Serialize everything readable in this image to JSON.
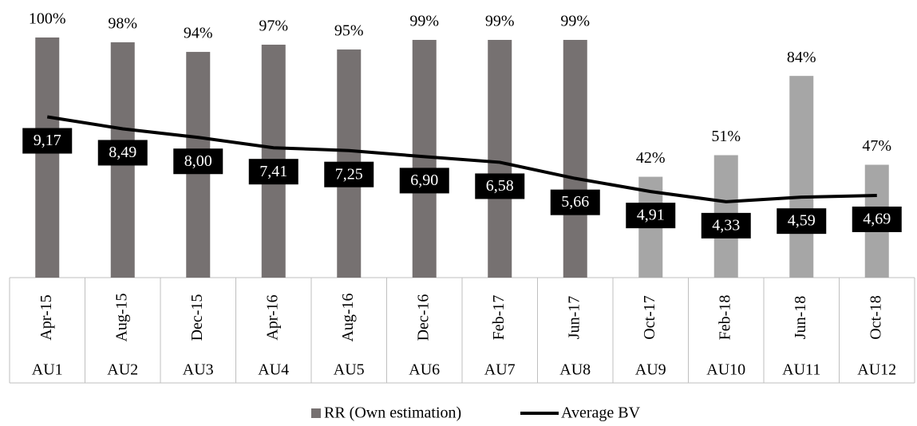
{
  "chart_data": {
    "type": "bar",
    "categories": [
      "Apr-15",
      "Aug-15",
      "Dec-15",
      "Apr-16",
      "Aug-16",
      "Dec-16",
      "Feb-17",
      "Jun-17",
      "Oct-17",
      "Feb-18",
      "Jun-18",
      "Oct-18"
    ],
    "category_groups": [
      "AU1",
      "AU2",
      "AU3",
      "AU4",
      "AU5",
      "AU6",
      "AU7",
      "AU8",
      "AU9",
      "AU10",
      "AU11",
      "AU12"
    ],
    "series": [
      {
        "name": "RR (Own estimation)",
        "color": "#767171",
        "colors": [
          "#767171",
          "#767171",
          "#767171",
          "#767171",
          "#767171",
          "#767171",
          "#767171",
          "#767171",
          "#a6a6a6",
          "#a6a6a6",
          "#a6a6a6",
          "#a6a6a6"
        ],
        "values": [
          100,
          98,
          94,
          97,
          95,
          99,
          99,
          99,
          42,
          51,
          84,
          47
        ],
        "value_labels": [
          "100%",
          "98%",
          "94%",
          "97%",
          "95%",
          "99%",
          "99%",
          "99%",
          "42%",
          "51%",
          "84%",
          "47%"
        ]
      },
      {
        "name": "Average BV",
        "type": "line",
        "axis": "y2",
        "color": "#000000",
        "values": [
          9.17,
          8.49,
          8.0,
          7.41,
          7.25,
          6.9,
          6.58,
          5.66,
          4.91,
          4.33,
          4.59,
          4.69
        ],
        "value_labels": [
          "9,17",
          "8,49",
          "8,00",
          "7,41",
          "7,25",
          "6,90",
          "6,58",
          "5,66",
          "4,91",
          "4,33",
          "4,59",
          "4,69"
        ]
      }
    ],
    "ylim": [
      0,
      100
    ],
    "y2lim": [
      0,
      13.7
    ],
    "legend": "bottom"
  }
}
